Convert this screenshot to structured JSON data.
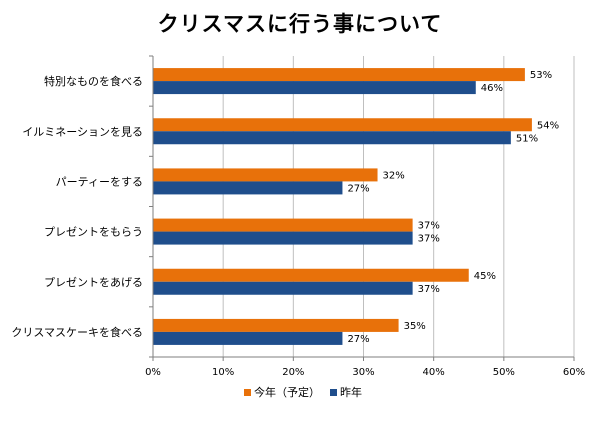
{
  "chart_data": {
    "type": "bar",
    "orientation": "horizontal",
    "title": "クリスマスに行う事について",
    "categories": [
      "特別なものを食べる",
      "イルミネーションを見る",
      "パーティーをする",
      "プレゼントをもらう",
      "プレゼントをあげる",
      "クリスマスケーキを食べる"
    ],
    "series": [
      {
        "name": "今年（予定）",
        "color": "#e8710a",
        "values": [
          53,
          54,
          32,
          37,
          45,
          35
        ],
        "labels": [
          "53%",
          "54%",
          "32%",
          "37%",
          "45%",
          "35%"
        ]
      },
      {
        "name": "昨年",
        "color": "#1f4e8c",
        "values": [
          46,
          51,
          27,
          37,
          37,
          27
        ],
        "labels": [
          "46%",
          "51%",
          "27%",
          "37%",
          "37%",
          "27%"
        ]
      }
    ],
    "xlim": [
      0,
      60
    ],
    "xticks": [
      "0%",
      "10%",
      "20%",
      "30%",
      "40%",
      "50%",
      "60%"
    ],
    "grid": true,
    "legend_position": "bottom"
  }
}
